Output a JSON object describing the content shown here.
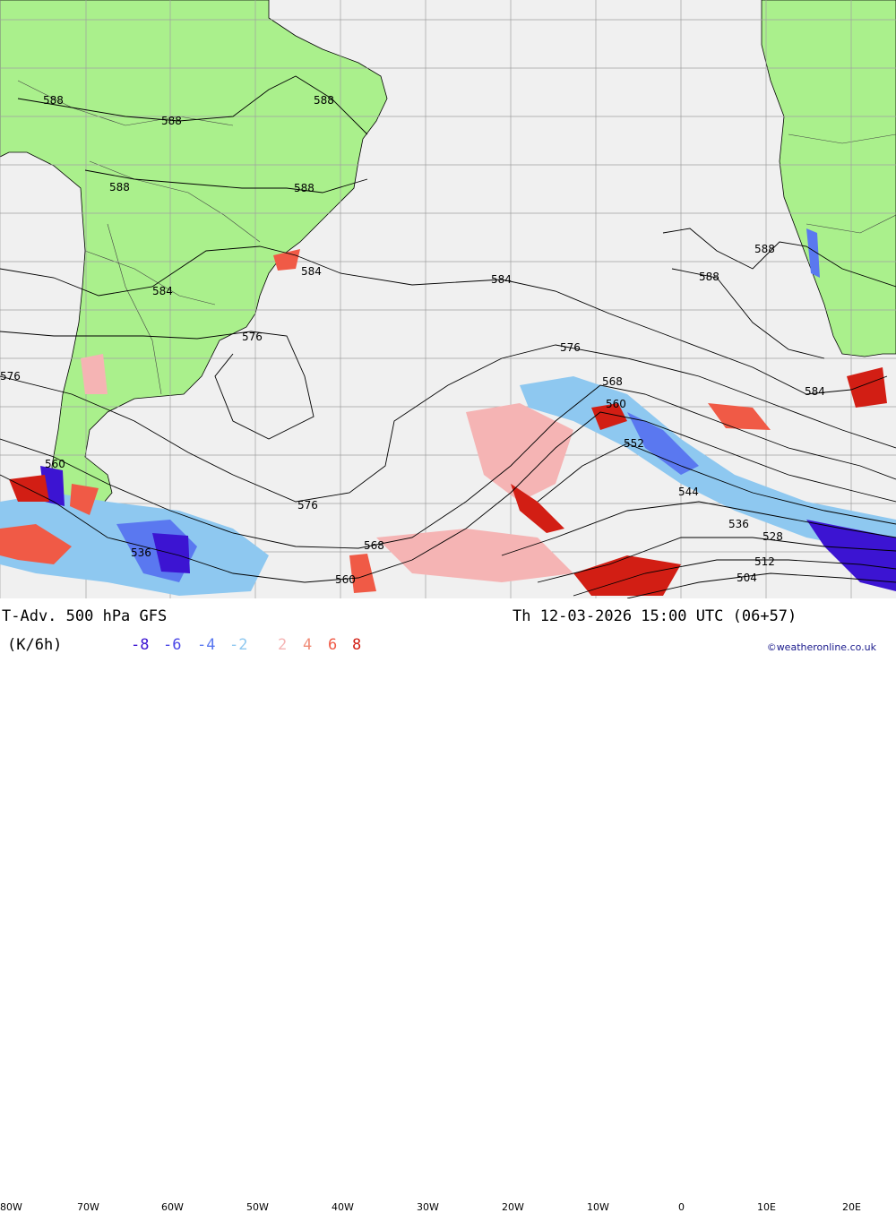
{
  "map": {
    "colors": {
      "ocean": "#f0f0f0",
      "land": "#aaf08c",
      "grid": "#a0a0a0",
      "contour": "#000000",
      "cold_light": "#8ec8f0",
      "cold_mid": "#5a78f0",
      "cold_dark": "#3c14d2",
      "warm_light": "#f5b4b4",
      "warm_mid": "#f05a46",
      "warm_dark": "#d21e14"
    },
    "contour_labels": [
      "588",
      "588",
      "588",
      "588",
      "588",
      "584",
      "584",
      "584",
      "576",
      "576",
      "576",
      "576",
      "588",
      "588",
      "584",
      "568",
      "560",
      "552",
      "544",
      "536",
      "528",
      "512",
      "504",
      "568",
      "560",
      "560",
      "536"
    ],
    "lon_labels": [
      "80W",
      "70W",
      "60W",
      "50W",
      "40W",
      "30W",
      "20W",
      "10W",
      "0",
      "10E",
      "20E"
    ]
  },
  "footer": {
    "title": "T-Adv. 500 hPa  GFS",
    "datetime": "Th 12-03-2026 15:00 UTC (06+57)",
    "units": "(K/6h)",
    "legend_cold": [
      "-8",
      "-6",
      "-4",
      "-2"
    ],
    "legend_warm": [
      "2",
      "4",
      "6",
      "8"
    ],
    "credit": "©weatheronline.co.uk"
  }
}
